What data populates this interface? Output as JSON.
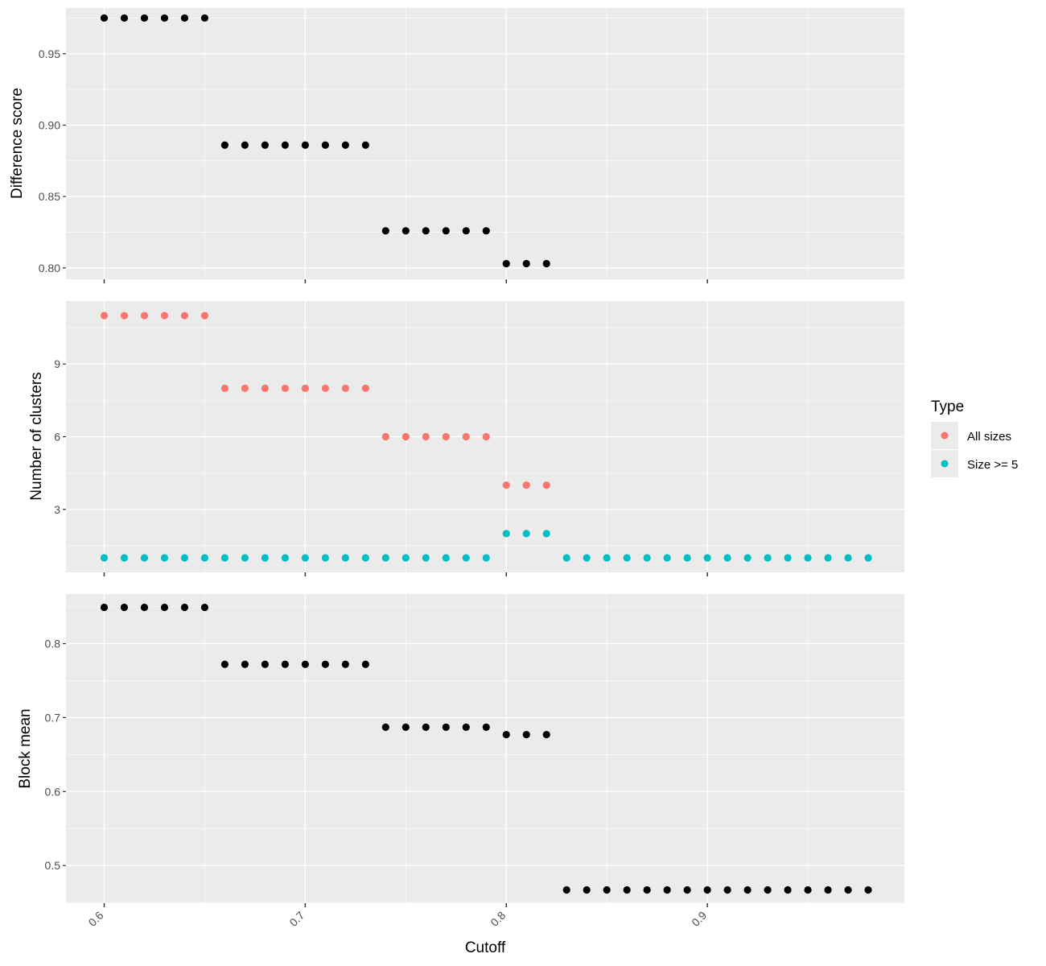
{
  "chart_data": [
    {
      "type": "scatter",
      "ylabel": "Difference score",
      "xlim": [
        0.581,
        0.998
      ],
      "ylim": [
        0.792,
        0.982
      ],
      "y_ticks": [
        0.8,
        0.85,
        0.9,
        0.95
      ],
      "y_tick_labels": [
        "0.80",
        "0.85",
        "0.90",
        "0.95"
      ],
      "grid": true,
      "series": [
        {
          "color": "#000000",
          "x": [
            0.6,
            0.61,
            0.62,
            0.63,
            0.64,
            0.65,
            0.66,
            0.67,
            0.68,
            0.69,
            0.7,
            0.71,
            0.72,
            0.73,
            0.74,
            0.75,
            0.76,
            0.77,
            0.78,
            0.79,
            0.8,
            0.81,
            0.82
          ],
          "y": [
            0.975,
            0.975,
            0.975,
            0.975,
            0.975,
            0.975,
            0.886,
            0.886,
            0.886,
            0.886,
            0.886,
            0.886,
            0.886,
            0.886,
            0.826,
            0.826,
            0.826,
            0.826,
            0.826,
            0.826,
            0.803,
            0.803,
            0.803
          ]
        }
      ]
    },
    {
      "type": "scatter",
      "ylabel": "Number of clusters",
      "xlim": [
        0.581,
        0.998
      ],
      "ylim": [
        0.4,
        11.6
      ],
      "y_ticks": [
        3,
        6,
        9
      ],
      "y_tick_labels": [
        "3",
        "6",
        "9"
      ],
      "grid": true,
      "legend": {
        "title": "Type",
        "position": "right"
      },
      "series": [
        {
          "name": "All sizes",
          "color": "#F8766D",
          "x": [
            0.6,
            0.61,
            0.62,
            0.63,
            0.64,
            0.65,
            0.66,
            0.67,
            0.68,
            0.69,
            0.7,
            0.71,
            0.72,
            0.73,
            0.74,
            0.75,
            0.76,
            0.77,
            0.78,
            0.79,
            0.8,
            0.81,
            0.82
          ],
          "y": [
            11,
            11,
            11,
            11,
            11,
            11,
            8,
            8,
            8,
            8,
            8,
            8,
            8,
            8,
            6,
            6,
            6,
            6,
            6,
            6,
            4,
            4,
            4
          ]
        },
        {
          "name": "Size >= 5",
          "color": "#00BFC4",
          "x": [
            0.6,
            0.61,
            0.62,
            0.63,
            0.64,
            0.65,
            0.66,
            0.67,
            0.68,
            0.69,
            0.7,
            0.71,
            0.72,
            0.73,
            0.74,
            0.75,
            0.76,
            0.77,
            0.78,
            0.79,
            0.8,
            0.81,
            0.82,
            0.83,
            0.84,
            0.85,
            0.86,
            0.87,
            0.88,
            0.89,
            0.9,
            0.91,
            0.92,
            0.93,
            0.94,
            0.95,
            0.96,
            0.97,
            0.98
          ],
          "y": [
            1,
            1,
            1,
            1,
            1,
            1,
            1,
            1,
            1,
            1,
            1,
            1,
            1,
            1,
            1,
            1,
            1,
            1,
            1,
            1,
            2,
            2,
            2,
            1,
            1,
            1,
            1,
            1,
            1,
            1,
            1,
            1,
            1,
            1,
            1,
            1,
            1,
            1,
            1
          ]
        }
      ]
    },
    {
      "type": "scatter",
      "xlabel": "Cutoff",
      "ylabel": "Block mean",
      "xlim": [
        0.581,
        0.998
      ],
      "ylim": [
        0.449,
        0.867
      ],
      "x_ticks": [
        0.6,
        0.7,
        0.8,
        0.9
      ],
      "x_tick_labels": [
        "0.6",
        "0.7",
        "0.8",
        "0.9"
      ],
      "y_ticks": [
        0.5,
        0.6,
        0.7,
        0.8
      ],
      "y_tick_labels": [
        "0.5",
        "0.6",
        "0.7",
        "0.8"
      ],
      "grid": true,
      "series": [
        {
          "color": "#000000",
          "x": [
            0.6,
            0.61,
            0.62,
            0.63,
            0.64,
            0.65,
            0.66,
            0.67,
            0.68,
            0.69,
            0.7,
            0.71,
            0.72,
            0.73,
            0.74,
            0.75,
            0.76,
            0.77,
            0.78,
            0.79,
            0.8,
            0.81,
            0.82,
            0.83,
            0.84,
            0.85,
            0.86,
            0.87,
            0.88,
            0.89,
            0.9,
            0.91,
            0.92,
            0.93,
            0.94,
            0.95,
            0.96,
            0.97,
            0.98
          ],
          "y": [
            0.849,
            0.849,
            0.849,
            0.849,
            0.849,
            0.849,
            0.772,
            0.772,
            0.772,
            0.772,
            0.772,
            0.772,
            0.772,
            0.772,
            0.687,
            0.687,
            0.687,
            0.687,
            0.687,
            0.687,
            0.677,
            0.677,
            0.677,
            0.467,
            0.467,
            0.467,
            0.467,
            0.467,
            0.467,
            0.467,
            0.467,
            0.467,
            0.467,
            0.467,
            0.467,
            0.467,
            0.467,
            0.467,
            0.467
          ]
        }
      ]
    }
  ]
}
